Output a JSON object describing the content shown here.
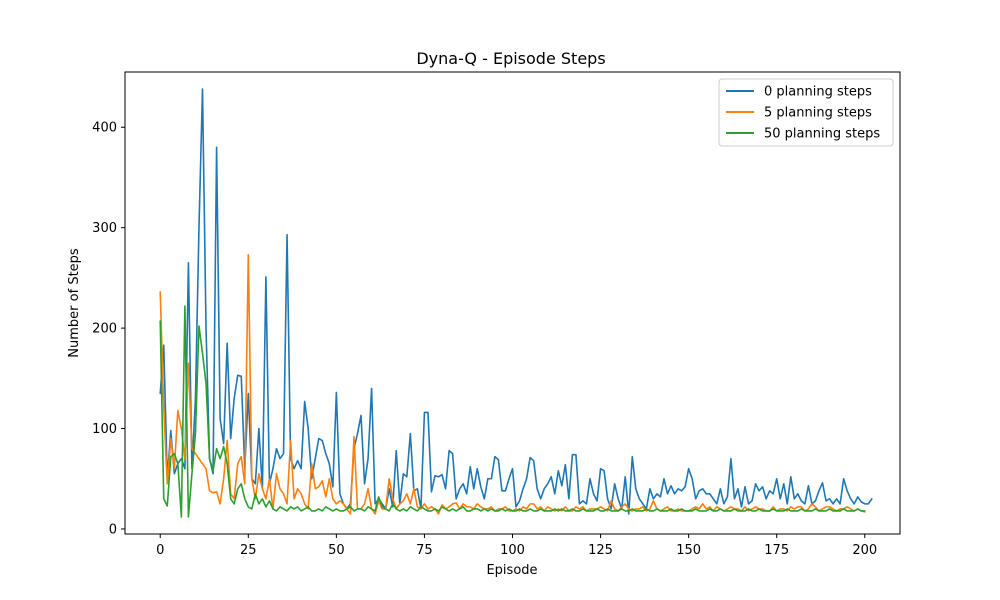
{
  "chart_data": {
    "type": "line",
    "title": "Dyna-Q - Episode Steps",
    "xlabel": "Episode",
    "ylabel": "Number of Steps",
    "xlim": [
      -10,
      210
    ],
    "ylim": [
      -5,
      455
    ],
    "xticks": [
      0,
      25,
      50,
      75,
      100,
      125,
      150,
      175,
      200
    ],
    "yticks": [
      0,
      100,
      200,
      300,
      400
    ],
    "grid": false,
    "legend_position": "top-right",
    "series": [
      {
        "name": "0 planning steps",
        "color": "#1f77b4",
        "y": [
          135,
          183,
          50,
          98,
          55,
          65,
          70,
          60,
          265,
          60,
          130,
          300,
          438,
          200,
          70,
          55,
          380,
          110,
          85,
          185,
          90,
          130,
          153,
          152,
          60,
          135,
          50,
          45,
          100,
          40,
          251,
          45,
          60,
          80,
          70,
          75,
          293,
          70,
          60,
          68,
          60,
          127,
          100,
          50,
          70,
          90,
          88,
          75,
          65,
          42,
          136,
          35,
          25,
          20,
          25,
          80,
          95,
          113,
          45,
          70,
          140,
          25,
          30,
          25,
          20,
          40,
          22,
          78,
          25,
          55,
          52,
          95,
          38,
          40,
          20,
          116,
          116,
          37,
          53,
          52,
          54,
          40,
          78,
          75,
          30,
          40,
          45,
          35,
          62,
          40,
          60,
          42,
          30,
          50,
          50,
          72,
          69,
          38,
          38,
          50,
          60,
          22,
          28,
          40,
          50,
          71,
          68,
          40,
          30,
          40,
          45,
          52,
          35,
          58,
          43,
          64,
          30,
          74,
          74,
          25,
          28,
          25,
          50,
          35,
          28,
          60,
          58,
          30,
          20,
          45,
          30,
          20,
          52,
          15,
          72,
          40,
          30,
          25,
          20,
          40,
          30,
          35,
          32,
          50,
          35,
          43,
          35,
          40,
          38,
          42,
          60,
          50,
          30,
          38,
          40,
          35,
          35,
          30,
          25,
          40,
          25,
          32,
          70,
          30,
          40,
          22,
          42,
          25,
          28,
          45,
          38,
          42,
          30,
          38,
          35,
          50,
          30,
          45,
          25,
          52,
          30,
          35,
          28,
          25,
          43,
          25,
          28,
          38,
          46,
          28,
          30,
          25,
          30,
          25,
          50,
          38,
          30,
          25,
          32,
          27,
          25,
          25,
          30
        ]
      },
      {
        "name": "5 planning steps",
        "color": "#ff7f0e",
        "y": [
          236,
          120,
          45,
          90,
          60,
          118,
          100,
          70,
          165,
          80,
          75,
          70,
          65,
          60,
          38,
          36,
          37,
          25,
          50,
          88,
          35,
          30,
          65,
          72,
          45,
          273,
          50,
          30,
          55,
          40,
          30,
          50,
          20,
          55,
          40,
          35,
          25,
          88,
          30,
          40,
          35,
          25,
          20,
          65,
          40,
          42,
          48,
          32,
          50,
          30,
          25,
          28,
          25,
          20,
          15,
          92,
          20,
          20,
          25,
          40,
          20,
          15,
          28,
          20,
          20,
          50,
          30,
          20,
          25,
          28,
          35,
          25,
          40,
          22,
          20,
          25,
          20,
          22,
          20,
          15,
          24,
          20,
          22,
          25,
          26,
          20,
          25,
          22,
          22,
          20,
          25,
          22,
          20,
          20,
          22,
          18,
          20,
          20,
          22,
          18,
          18,
          20,
          18,
          22,
          20,
          25,
          25,
          20,
          22,
          18,
          22,
          20,
          18,
          20,
          18,
          22,
          18,
          18,
          22,
          20,
          22,
          18,
          20,
          20,
          20,
          22,
          20,
          18,
          28,
          20,
          18,
          22,
          25,
          20,
          18,
          20,
          20,
          22,
          18,
          20,
          28,
          20,
          18,
          20,
          22,
          18,
          18,
          20,
          18,
          18,
          18,
          20,
          22,
          20,
          25,
          20,
          22,
          18,
          22,
          20,
          18,
          20,
          22,
          20,
          20,
          18,
          22,
          18,
          20,
          22,
          20,
          20,
          18,
          18,
          22,
          18,
          20,
          20,
          18,
          22,
          20,
          22,
          22,
          18,
          20,
          25,
          22,
          18,
          20,
          22,
          22,
          20,
          18,
          20,
          20,
          22,
          20,
          18,
          20,
          18,
          17
        ]
      },
      {
        "name": "50 planning steps",
        "color": "#2ca02c",
        "y": [
          207,
          30,
          23,
          72,
          75,
          65,
          12,
          222,
          12,
          55,
          95,
          202,
          175,
          145,
          70,
          58,
          80,
          70,
          82,
          65,
          30,
          25,
          40,
          45,
          30,
          22,
          20,
          35,
          25,
          30,
          22,
          28,
          20,
          18,
          22,
          20,
          18,
          22,
          20,
          22,
          18,
          20,
          22,
          18,
          18,
          20,
          18,
          22,
          20,
          18,
          20,
          18,
          18,
          20,
          22,
          18,
          20,
          20,
          18,
          22,
          20,
          18,
          32,
          22,
          20,
          18,
          25,
          20,
          18,
          20,
          18,
          22,
          20,
          18,
          22,
          20,
          18,
          18,
          20,
          18,
          22,
          20,
          18,
          20,
          18,
          20,
          22,
          18,
          18,
          20,
          20,
          18,
          20,
          18,
          20,
          18,
          18,
          20,
          18,
          20,
          18,
          18,
          20,
          18,
          18,
          20,
          18,
          18,
          20,
          18,
          18,
          18,
          20,
          18,
          20,
          18,
          18,
          20,
          18,
          18,
          20,
          18,
          18,
          18,
          20,
          18,
          18,
          20,
          18,
          18,
          18,
          20,
          18,
          18,
          20,
          18,
          18,
          18,
          20,
          18,
          18,
          20,
          18,
          18,
          18,
          20,
          18,
          18,
          20,
          18,
          18,
          18,
          20,
          18,
          18,
          18,
          20,
          18,
          18,
          20,
          18,
          18,
          18,
          20,
          18,
          18,
          18,
          20,
          18,
          18,
          20,
          18,
          18,
          18,
          20,
          18,
          18,
          18,
          20,
          18,
          18,
          18,
          20,
          18,
          18,
          18,
          20,
          18,
          18,
          18,
          20,
          18,
          18,
          18,
          20,
          18,
          18,
          18,
          20,
          18,
          18
        ]
      }
    ]
  }
}
